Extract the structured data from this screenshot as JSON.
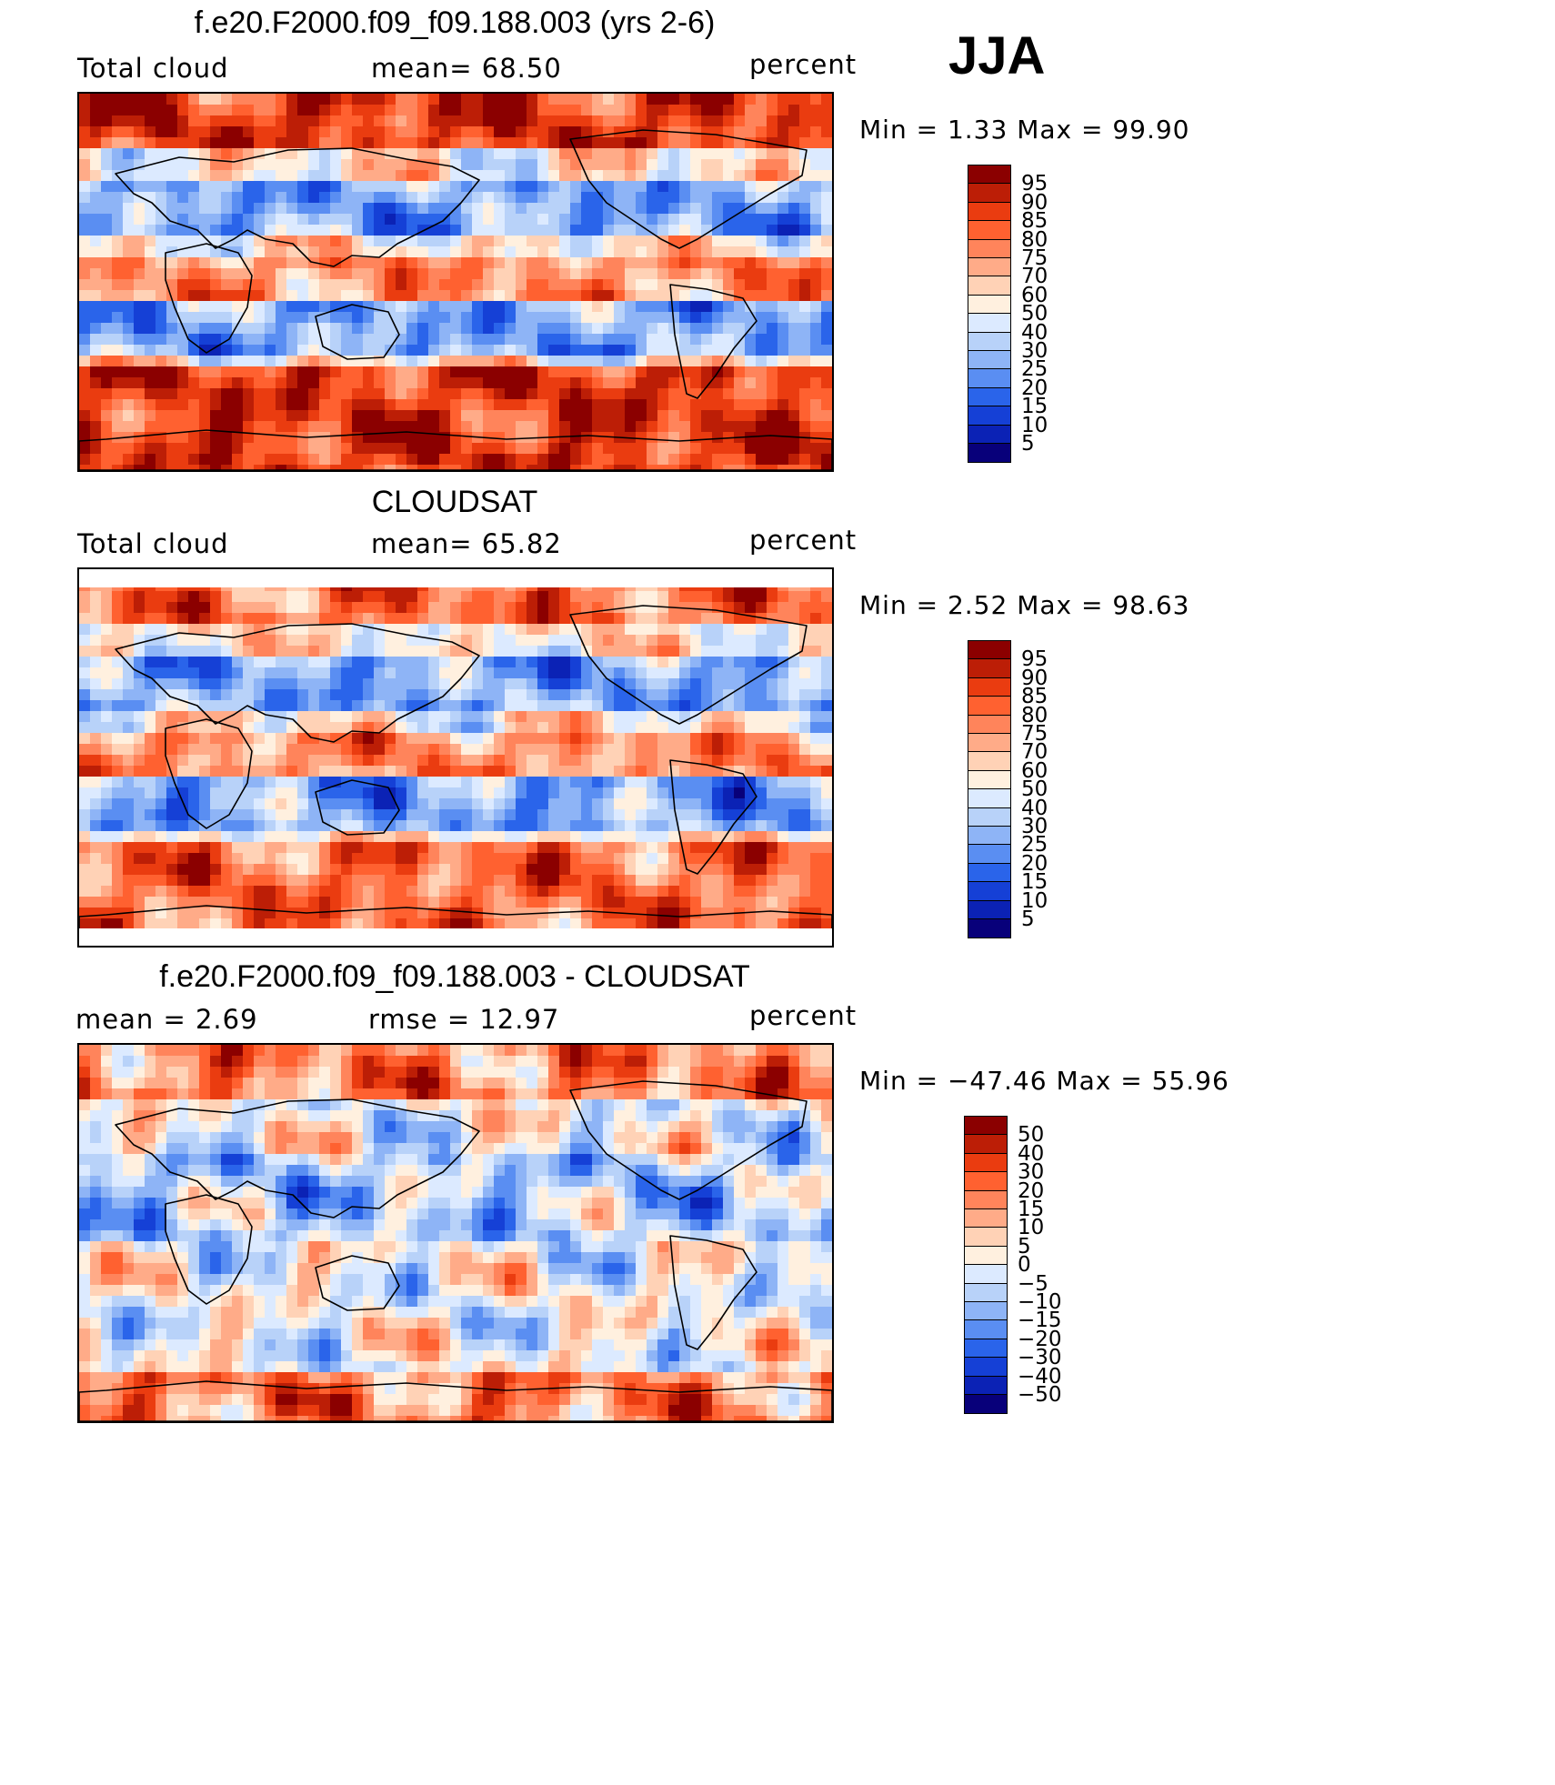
{
  "season": "JJA",
  "colors": {
    "abs_scale": [
      "#08007a",
      "#0b22b5",
      "#1540d6",
      "#2a64ea",
      "#5a8ef2",
      "#8eb4f6",
      "#b8d2f9",
      "#dceaff",
      "#fff0df",
      "#ffd2b6",
      "#ffab88",
      "#ff845b",
      "#ff6130",
      "#ea3c10",
      "#bc1e06",
      "#8b0000"
    ],
    "diff_scale": [
      "#08007a",
      "#0b22b5",
      "#1540d6",
      "#2a64ea",
      "#5a8ef2",
      "#8eb4f6",
      "#b8d2f9",
      "#dceaff",
      "#fff0df",
      "#ffd2b6",
      "#ffab88",
      "#ff845b",
      "#ff6130",
      "#ea3c10",
      "#bc1e06",
      "#8b0000"
    ]
  },
  "panels": [
    {
      "id": "model",
      "title": "f.e20.F2000.f09_f09.188.003 (yrs 2-6)",
      "left_label": "Total cloud",
      "center_label": "mean=   68.50",
      "units": "percent",
      "minmax": "Min =     1.33  Max  =    99.90",
      "colorbar_labels": [
        "95",
        "90",
        "85",
        "80",
        "75",
        "70",
        "60",
        "50",
        "40",
        "30",
        "25",
        "20",
        "15",
        "10",
        "5"
      ],
      "intensity": 0.85,
      "kind": "abs"
    },
    {
      "id": "obs",
      "title": "CLOUDSAT",
      "left_label": "Total cloud",
      "center_label": "mean=   65.82",
      "units": "percent",
      "minmax": "Min =     2.52  Max  =    98.63",
      "colorbar_labels": [
        "95",
        "90",
        "85",
        "80",
        "75",
        "70",
        "60",
        "50",
        "40",
        "30",
        "25",
        "20",
        "15",
        "10",
        "5"
      ],
      "intensity": 0.6,
      "kind": "abs"
    },
    {
      "id": "diff",
      "title": "f.e20.F2000.f09_f09.188.003 - CLOUDSAT",
      "left_label": "mean  =     2.69",
      "center_label": "rmse  =    12.97",
      "units": "percent",
      "minmax": "Min  = −47.46  Max  =    55.96",
      "colorbar_labels": [
        "50",
        "40",
        "30",
        "20",
        "15",
        "10",
        "5",
        "0",
        "−5",
        "−10",
        "−15",
        "−20",
        "−30",
        "−40",
        "−50"
      ],
      "intensity": 0.5,
      "kind": "diff"
    }
  ]
}
